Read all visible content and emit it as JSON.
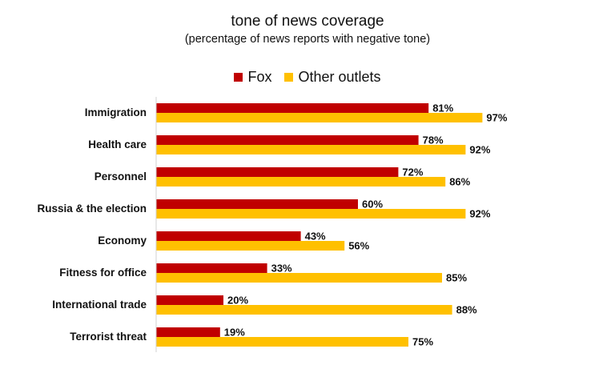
{
  "chart_data": {
    "type": "bar",
    "orientation": "horizontal",
    "title": "tone of news coverage",
    "subtitle": "(percentage of news reports with negative tone)",
    "categories": [
      "Immigration",
      "Health care",
      "Personnel",
      "Russia & the election",
      "Economy",
      "Fitness for office",
      "International trade",
      "Terrorist threat"
    ],
    "series": [
      {
        "name": "Fox",
        "color": "#C00000",
        "values": [
          81,
          78,
          72,
          60,
          43,
          33,
          20,
          19
        ],
        "labels": [
          "81%",
          "78%",
          "72%",
          "60%",
          "43%",
          "33%",
          "20%",
          "19%"
        ]
      },
      {
        "name": "Other outlets",
        "color": "#FFC000",
        "values": [
          97,
          92,
          86,
          92,
          56,
          85,
          88,
          75
        ],
        "labels": [
          "97%",
          "92%",
          "86%",
          "92%",
          "56%",
          "85%",
          "88%",
          "75%"
        ]
      }
    ],
    "xlim": [
      0,
      100
    ],
    "legend_position": "top-center",
    "grid": false
  }
}
